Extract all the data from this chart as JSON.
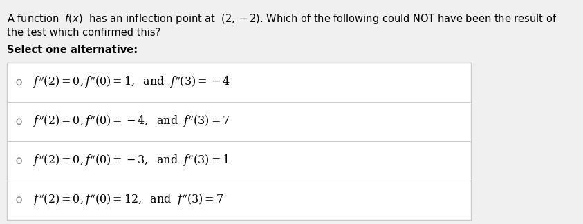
{
  "bg_color": "#f0f0f0",
  "white_color": "#ffffff",
  "text_color": "#000000",
  "question_line1": "A function  $f(x)$  has an inflection point at  $(2, -2)$. Which of the following could NOT have been the result of",
  "question_line2": "the test which confirmed this?",
  "select_label": "Select one alternative:",
  "options": [
    "$f''(2) = 0, f''(0) = 1,\\;$ and $\\; f''(3) = -4$",
    "$f''(2) = 0, f''(0) = -4,\\;$ and $\\; f''(3) = 7$",
    "$f''(2) = 0, f''(0) = -3,\\;$ and $\\; f''(3) = 1$",
    "$f''(2) = 0, f''(0) = 12,\\;$ and $\\; f''(3) = 7$"
  ],
  "fig_width": 8.43,
  "fig_height": 3.25,
  "dpi": 100
}
